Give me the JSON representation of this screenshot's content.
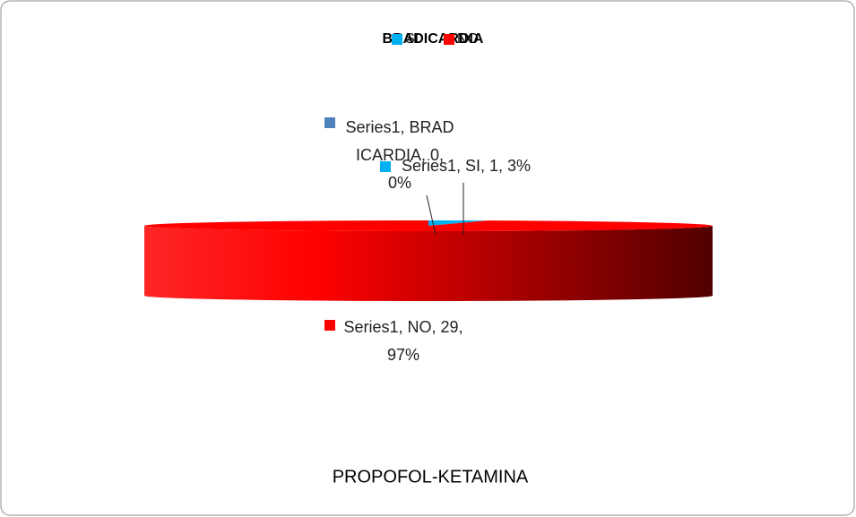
{
  "chart_data": {
    "type": "pie3d",
    "title": "BRADICARDIA",
    "xlabel": "PROPOFOL-KETAMINA",
    "categories": [
      "BRADICARDIA",
      "SI",
      "NO"
    ],
    "values": [
      0,
      1,
      29
    ],
    "value_labels": [
      "Series1, BRADICARDIA, 0, 0%",
      "Series1, SI, 1, 3%",
      "Series1, NO, 29, 97%"
    ],
    "colors": [
      "#4f81bd",
      "#00b0f0",
      "#ff0000"
    ],
    "legend": "top"
  }
}
